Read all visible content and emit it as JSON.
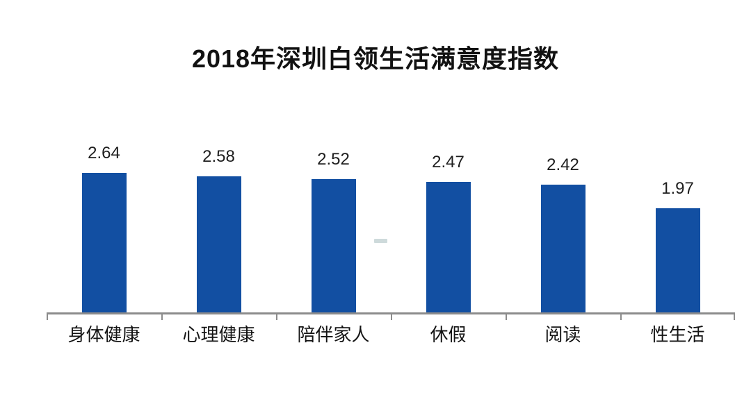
{
  "title": "2018年深圳白领生活满意度指数",
  "colors": {
    "bar": "#124FA2",
    "axis": "#8c8c8c",
    "title_text": "#121212",
    "value_text": "#1e1e1e",
    "category_text": "#141414",
    "background": "#ffffff",
    "watermark": "#b4c6c8"
  },
  "chart_data": {
    "type": "bar",
    "title": "2018年深圳白领生活满意度指数",
    "categories": [
      "身体健康",
      "心理健康",
      "陪伴家人",
      "休假",
      "阅读",
      "性生活"
    ],
    "values": [
      2.64,
      2.58,
      2.52,
      2.47,
      2.42,
      1.97
    ],
    "value_labels": [
      "2.64",
      "2.58",
      "2.52",
      "2.47",
      "2.42",
      "1.97"
    ],
    "xlabel": "",
    "ylabel": "",
    "ylim": [
      0,
      3
    ],
    "grid": false,
    "legend_position": "none",
    "bar_color": "#124FA2",
    "value_labels_position": "above-bars",
    "axis_ticks": "category-boundaries-below-baseline"
  }
}
